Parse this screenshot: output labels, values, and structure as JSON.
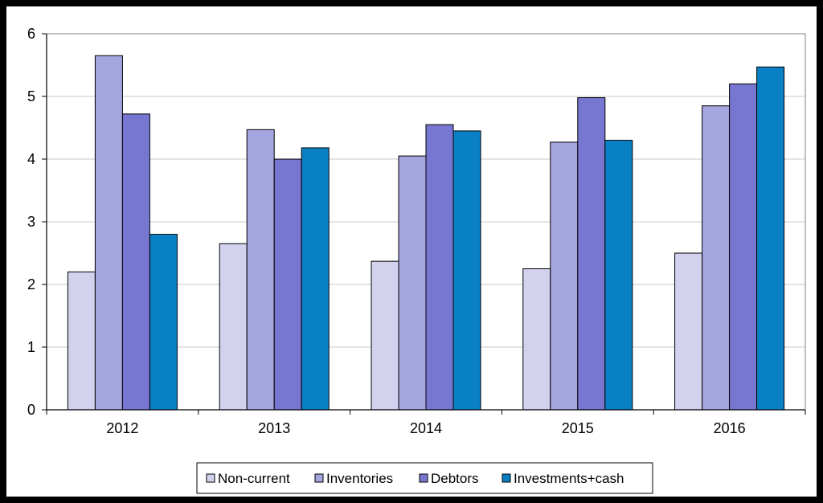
{
  "chart_data": {
    "type": "bar",
    "categories": [
      "2012",
      "2013",
      "2014",
      "2015",
      "2016"
    ],
    "series": [
      {
        "name": "Non-current",
        "color": "#d2d2ee",
        "values": [
          2.2,
          2.65,
          2.37,
          2.25,
          2.5
        ]
      },
      {
        "name": "Inventories",
        "color": "#a5a5e0",
        "values": [
          5.65,
          4.47,
          4.05,
          4.27,
          4.85
        ]
      },
      {
        "name": "Debtors",
        "color": "#7777d2",
        "values": [
          4.72,
          4.0,
          4.55,
          4.98,
          5.2
        ]
      },
      {
        "name": "Investments+cash",
        "color": "#0a80c4",
        "values": [
          2.8,
          4.18,
          4.45,
          4.3,
          5.47
        ]
      }
    ],
    "yticks": [
      "0",
      "1",
      "2",
      "3",
      "4",
      "5",
      "6"
    ],
    "ylim": [
      0,
      6
    ],
    "grid": true,
    "legend_position": "bottom"
  }
}
